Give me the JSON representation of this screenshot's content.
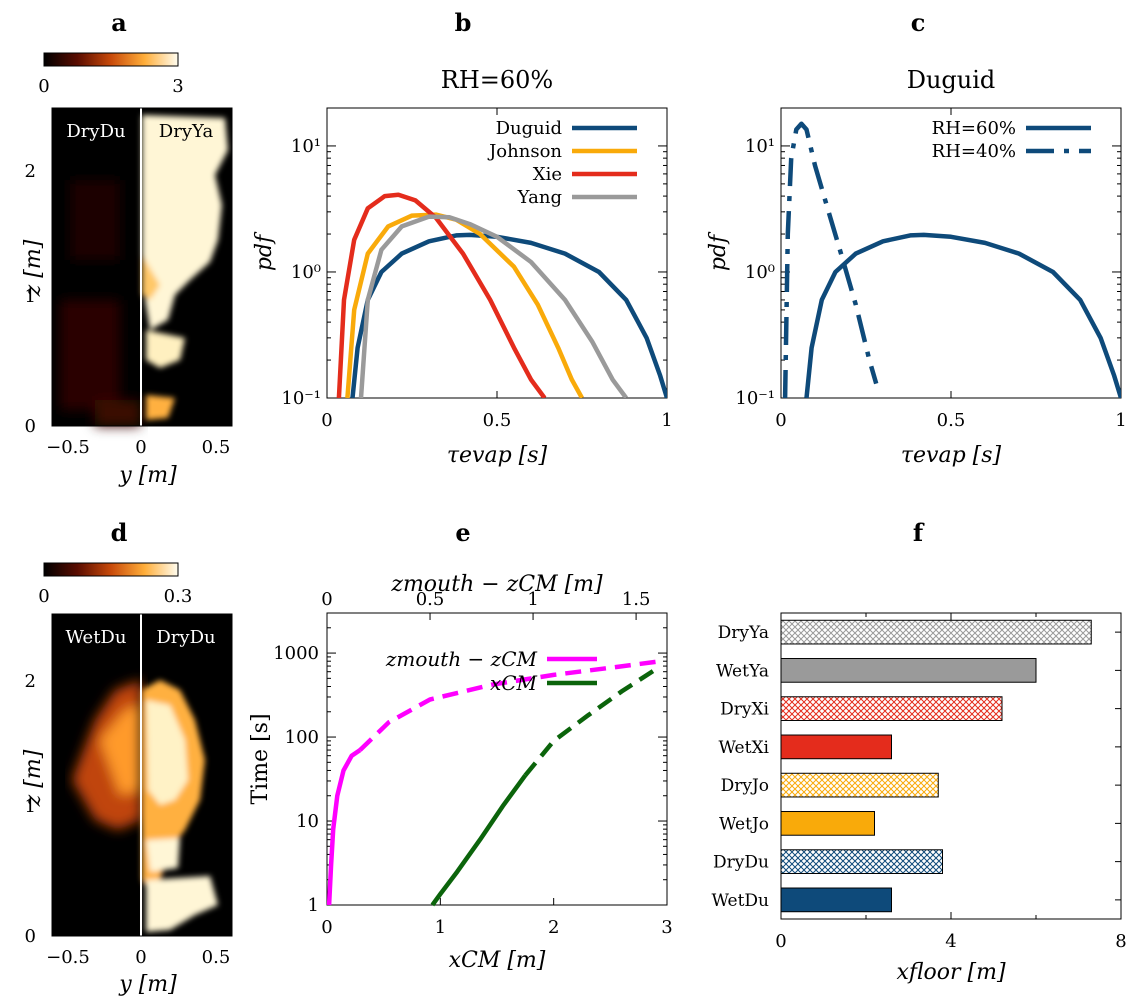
{
  "colors": {
    "duguid": "#0e4a7a",
    "johnson": "#f9aa0a",
    "xie": "#e42c1c",
    "yang": "#9a9a9a",
    "magenta": "#ff00ff",
    "green": "#0b640b"
  },
  "panel_labels": [
    "a",
    "b",
    "c",
    "d",
    "e",
    "f"
  ],
  "panel_a": {
    "colorbar_min": "0",
    "colorbar_max": "3",
    "left_label": "DryDu",
    "right_label": "DryYa",
    "xlabel": "y [m]",
    "ylabel": "z [m]",
    "xticks": [
      "−0.5",
      "0",
      "0.5"
    ],
    "yticks": [
      "0",
      "1",
      "2"
    ]
  },
  "panel_d": {
    "colorbar_min": "0",
    "colorbar_max": "0.3",
    "left_label": "WetDu",
    "right_label": "DryDu",
    "xlabel": "y [m]",
    "ylabel": "z [m]",
    "xticks": [
      "−0.5",
      "0",
      "0.5"
    ],
    "yticks": [
      "0",
      "1",
      "2"
    ]
  },
  "chart_data": [
    {
      "panel": "b",
      "type": "line",
      "title": "RH=60%",
      "xlabel": "τevap [s]",
      "ylabel": "pdf",
      "xlim": [
        0,
        1
      ],
      "ylim": [
        0.1,
        20
      ],
      "yscale": "log",
      "xticks": [
        "0",
        "0.5",
        "1"
      ],
      "yticks": [
        "10⁻¹",
        "10⁰",
        "10¹"
      ],
      "legend": "top-right",
      "series": [
        {
          "name": "Duguid",
          "color": "#0e4a7a",
          "x": [
            0.075,
            0.09,
            0.12,
            0.16,
            0.22,
            0.3,
            0.38,
            0.42,
            0.5,
            0.6,
            0.7,
            0.8,
            0.88,
            0.94,
            0.98,
            1.0
          ],
          "y": [
            0.1,
            0.25,
            0.6,
            1.0,
            1.4,
            1.75,
            1.95,
            1.97,
            1.9,
            1.7,
            1.4,
            1.0,
            0.6,
            0.3,
            0.15,
            0.1
          ]
        },
        {
          "name": "Johnson",
          "color": "#f9aa0a",
          "x": [
            0.06,
            0.08,
            0.12,
            0.18,
            0.25,
            0.32,
            0.38,
            0.45,
            0.55,
            0.62,
            0.68,
            0.72,
            0.75
          ],
          "y": [
            0.1,
            0.5,
            1.4,
            2.3,
            2.8,
            2.85,
            2.6,
            2.0,
            1.1,
            0.55,
            0.25,
            0.14,
            0.1
          ]
        },
        {
          "name": "Xie",
          "color": "#e42c1c",
          "x": [
            0.035,
            0.05,
            0.08,
            0.12,
            0.17,
            0.21,
            0.26,
            0.32,
            0.4,
            0.48,
            0.55,
            0.6,
            0.64
          ],
          "y": [
            0.1,
            0.6,
            1.8,
            3.2,
            4.0,
            4.1,
            3.7,
            2.7,
            1.4,
            0.6,
            0.25,
            0.14,
            0.1
          ]
        },
        {
          "name": "Yang",
          "color": "#9a9a9a",
          "x": [
            0.1,
            0.12,
            0.16,
            0.22,
            0.3,
            0.36,
            0.42,
            0.5,
            0.6,
            0.7,
            0.78,
            0.84,
            0.88
          ],
          "y": [
            0.1,
            0.6,
            1.5,
            2.3,
            2.75,
            2.72,
            2.4,
            1.9,
            1.2,
            0.6,
            0.28,
            0.14,
            0.1
          ]
        }
      ]
    },
    {
      "panel": "c",
      "type": "line",
      "title": "Duguid",
      "xlabel": "τevap [s]",
      "ylabel": "pdf",
      "xlim": [
        0,
        1
      ],
      "ylim": [
        0.1,
        20
      ],
      "yscale": "log",
      "xticks": [
        "0",
        "0.5",
        "1"
      ],
      "yticks": [
        "10⁻¹",
        "10⁰",
        "10¹"
      ],
      "legend": "top-right",
      "series": [
        {
          "name": "RH=60%",
          "color": "#0e4a7a",
          "style": "solid",
          "x": [
            0.075,
            0.09,
            0.12,
            0.16,
            0.22,
            0.3,
            0.38,
            0.42,
            0.5,
            0.6,
            0.7,
            0.8,
            0.88,
            0.94,
            0.98,
            1.0
          ],
          "y": [
            0.1,
            0.25,
            0.6,
            1.0,
            1.4,
            1.75,
            1.95,
            1.97,
            1.9,
            1.7,
            1.4,
            1.0,
            0.6,
            0.3,
            0.15,
            0.1
          ]
        },
        {
          "name": "RH=40%",
          "color": "#0e4a7a",
          "style": "dashdot",
          "x": [
            0.012,
            0.02,
            0.03,
            0.045,
            0.06,
            0.075,
            0.1,
            0.14,
            0.18,
            0.22,
            0.26,
            0.28
          ],
          "y": [
            0.1,
            2.0,
            8.0,
            13.5,
            15.0,
            13.5,
            7.0,
            3.0,
            1.3,
            0.55,
            0.2,
            0.13
          ]
        }
      ]
    },
    {
      "panel": "e",
      "type": "line",
      "xlabel": "xCM [m]",
      "ylabel": "Time [s]",
      "x2label": "zmouth − zCM [m]",
      "xlim": [
        0,
        3
      ],
      "x2lim": [
        0,
        1.65
      ],
      "ylim": [
        1,
        3000
      ],
      "yscale": "log",
      "xticks": [
        "0",
        "1",
        "2",
        "3"
      ],
      "x2ticks": [
        "0",
        "0.5",
        "1",
        "1.5"
      ],
      "yticks": [
        "1",
        "10",
        "100",
        "1000"
      ],
      "legend": "top-right",
      "series": [
        {
          "name": "zmouth − zCM",
          "color": "#ff00ff",
          "axis": "top",
          "solid_x": [
            0.01,
            0.02,
            0.03,
            0.05,
            0.08,
            0.12,
            0.16
          ],
          "solid_y": [
            1,
            3,
            8,
            20,
            40,
            60,
            70
          ],
          "dashed_x": [
            0.16,
            0.3,
            0.5,
            0.8,
            1.1,
            1.4,
            1.6
          ],
          "dashed_y": [
            70,
            150,
            280,
            420,
            550,
            680,
            790
          ]
        },
        {
          "name": "xCM",
          "color": "#0b640b",
          "axis": "bottom",
          "solid_x": [
            0.93,
            1.0,
            1.15,
            1.35,
            1.55,
            1.75
          ],
          "solid_y": [
            1,
            1.35,
            2.5,
            6,
            15,
            35
          ],
          "dashed_x": [
            1.75,
            2.0,
            2.3,
            2.6,
            2.9
          ],
          "dashed_y": [
            35,
            90,
            180,
            350,
            640
          ]
        }
      ]
    },
    {
      "panel": "f",
      "type": "bar",
      "orientation": "horizontal",
      "xlabel": "xfloor [m]",
      "xlim": [
        0,
        8
      ],
      "xticks": [
        "0",
        "4",
        "8"
      ],
      "categories": [
        "DryYa",
        "WetYa",
        "DryXi",
        "WetXi",
        "DryJo",
        "WetJo",
        "DryDu",
        "WetDu"
      ],
      "values": [
        7.3,
        6.0,
        5.2,
        2.6,
        3.7,
        2.2,
        3.8,
        2.6
      ],
      "bar_colors": [
        "#9a9a9a",
        "#9a9a9a",
        "#e42c1c",
        "#e42c1c",
        "#f9aa0a",
        "#f9aa0a",
        "#0e4a7a",
        "#0e4a7a"
      ],
      "hatched": [
        true,
        false,
        true,
        false,
        true,
        false,
        true,
        false
      ]
    }
  ]
}
